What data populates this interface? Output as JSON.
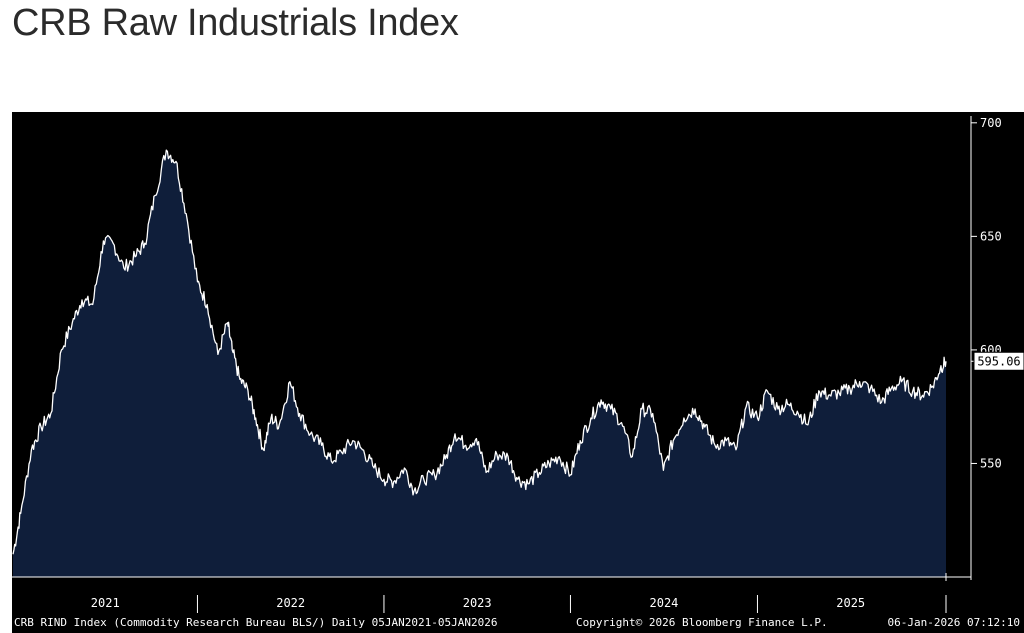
{
  "page_title": "CRB Raw Industrials Index",
  "chart_data": {
    "type": "area",
    "title": "CRB Raw Industrials Index",
    "x_range": [
      "2021-01-05",
      "2026-01-05"
    ],
    "x_ticks": [
      "2021",
      "2022",
      "2023",
      "2024",
      "2025"
    ],
    "y_ticks": [
      550,
      600,
      650,
      700
    ],
    "ylim": [
      500,
      703
    ],
    "last_value_label": "595.06",
    "grid": false,
    "colors": {
      "fill": "#0f1e3a",
      "line": "#ffffff",
      "background": "#000000",
      "axis": "#ffffff"
    },
    "series": [
      {
        "x": [
          "2021-01-05",
          "2021-01-20",
          "2021-02-10",
          "2021-03-01",
          "2021-03-20",
          "2021-04-10",
          "2021-05-01",
          "2021-05-20",
          "2021-06-10",
          "2021-07-01",
          "2021-07-20",
          "2021-08-10",
          "2021-09-01",
          "2021-09-20",
          "2021-10-10",
          "2021-11-01",
          "2021-11-20",
          "2021-12-10",
          "2022-01-01",
          "2022-01-20",
          "2022-02-10",
          "2022-03-01",
          "2022-03-10",
          "2022-03-25",
          "2022-04-10",
          "2022-04-25",
          "2022-05-10",
          "2022-05-25",
          "2022-06-10",
          "2022-07-01",
          "2022-07-20",
          "2022-08-10",
          "2022-09-01",
          "2022-09-20",
          "2022-10-10",
          "2022-11-01",
          "2022-11-20",
          "2022-12-10",
          "2023-01-01",
          "2023-01-20",
          "2023-02-10",
          "2023-03-01",
          "2023-03-20",
          "2023-04-10",
          "2023-05-01",
          "2023-05-20",
          "2023-06-10",
          "2023-07-01",
          "2023-07-20",
          "2023-08-10",
          "2023-09-01",
          "2023-09-20",
          "2023-10-10",
          "2023-11-01",
          "2023-11-20",
          "2023-12-10",
          "2024-01-01",
          "2024-01-20",
          "2024-02-10",
          "2024-03-01",
          "2024-03-20",
          "2024-04-10",
          "2024-05-01",
          "2024-05-20",
          "2024-06-10",
          "2024-07-01",
          "2024-07-20",
          "2024-08-10",
          "2024-09-01",
          "2024-09-20",
          "2024-10-10",
          "2024-11-01",
          "2024-11-20",
          "2024-12-10",
          "2025-01-01",
          "2025-01-20",
          "2025-02-10",
          "2025-03-01",
          "2025-03-20",
          "2025-04-10",
          "2025-05-01",
          "2025-05-20",
          "2025-06-10",
          "2025-07-01",
          "2025-07-20",
          "2025-08-10",
          "2025-09-01",
          "2025-09-20",
          "2025-10-10",
          "2025-11-01",
          "2025-11-20",
          "2025-12-10",
          "2025-12-25",
          "2026-01-05"
        ],
        "y": [
          510,
          528,
          556,
          566,
          572,
          600,
          612,
          622,
          620,
          648,
          647,
          636,
          641,
          647,
          668,
          688,
          683,
          660,
          630,
          620,
          598,
          612,
          600,
          587,
          582,
          570,
          556,
          570,
          567,
          586,
          572,
          563,
          558,
          551,
          555,
          560,
          556,
          549,
          543,
          542,
          548,
          538,
          543,
          545,
          552,
          563,
          558,
          561,
          546,
          554,
          553,
          543,
          541,
          546,
          550,
          553,
          545,
          560,
          570,
          578,
          574,
          568,
          553,
          574,
          572,
          547,
          560,
          570,
          574,
          566,
          558,
          560,
          556,
          575,
          570,
          582,
          574,
          576,
          573,
          567,
          582,
          580,
          581,
          583,
          586,
          583,
          577,
          583,
          586,
          582,
          580,
          584,
          592,
          595
        ]
      }
    ]
  },
  "footer": {
    "left": "CRB RIND Index (Commodity Research Bureau BLS/) Daily 05JAN2021-05JAN2026",
    "center": "Copyright© 2026 Bloomberg Finance L.P.",
    "right": "06-Jan-2026 07:12:10"
  }
}
